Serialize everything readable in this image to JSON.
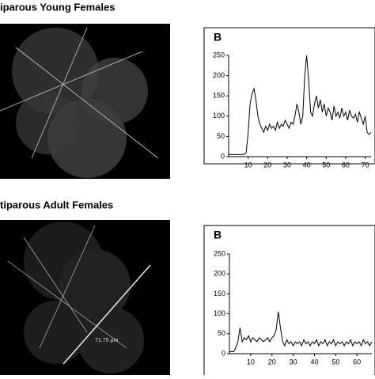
{
  "chart_data": [
    {
      "type": "line",
      "title": "iparous Young Females",
      "panel_label": "B",
      "color": "#000000",
      "x": [
        0,
        1,
        2,
        3,
        4,
        5,
        6,
        7,
        8,
        9,
        10,
        11,
        12,
        13,
        14,
        15,
        16,
        17,
        18,
        19,
        20,
        21,
        22,
        23,
        24,
        25,
        26,
        27,
        28,
        29,
        30,
        31,
        32,
        33,
        34,
        35,
        36,
        37,
        38,
        39,
        40,
        41,
        42,
        43,
        44,
        45,
        46,
        47,
        48,
        49,
        50,
        51,
        52,
        53,
        54,
        55,
        56,
        57,
        58,
        59,
        60,
        61,
        62,
        63,
        64,
        65,
        66,
        67,
        68,
        69,
        70,
        71,
        72,
        73
      ],
      "values": [
        5,
        5,
        5,
        5,
        5,
        5,
        5,
        5,
        6,
        10,
        60,
        130,
        155,
        168,
        140,
        100,
        80,
        70,
        60,
        75,
        65,
        80,
        70,
        75,
        65,
        85,
        70,
        80,
        75,
        90,
        80,
        70,
        85,
        80,
        100,
        130,
        110,
        80,
        100,
        200,
        250,
        190,
        110,
        100,
        130,
        150,
        120,
        140,
        110,
        130,
        100,
        120,
        110,
        90,
        125,
        100,
        110,
        95,
        120,
        100,
        110,
        90,
        115,
        100,
        95,
        105,
        85,
        110,
        95,
        80,
        100,
        60,
        55,
        60
      ],
      "xlim": [
        0,
        73
      ],
      "ylim": [
        0,
        250
      ],
      "xticks": [
        10,
        20,
        30,
        40,
        50,
        60,
        70
      ],
      "yticks": [
        0,
        50,
        100,
        150,
        200,
        250
      ]
    },
    {
      "type": "line",
      "title": "tiparous Adult Females",
      "panel_label": "B",
      "color": "#000000",
      "image_annotation": "71.75 µm",
      "x": [
        0,
        1,
        2,
        3,
        4,
        5,
        6,
        7,
        8,
        9,
        10,
        11,
        12,
        13,
        14,
        15,
        16,
        17,
        18,
        19,
        20,
        21,
        22,
        23,
        24,
        25,
        26,
        27,
        28,
        29,
        30,
        31,
        32,
        33,
        34,
        35,
        36,
        37,
        38,
        39,
        40,
        41,
        42,
        43,
        44,
        45,
        46,
        47,
        48,
        49,
        50,
        51,
        52,
        53,
        54,
        55,
        56,
        57,
        58,
        59,
        60,
        61,
        62,
        63,
        64,
        65,
        66,
        67
      ],
      "values": [
        5,
        5,
        5,
        15,
        30,
        65,
        30,
        40,
        35,
        45,
        30,
        40,
        35,
        30,
        40,
        35,
        30,
        35,
        40,
        30,
        40,
        45,
        60,
        105,
        65,
        30,
        20,
        35,
        25,
        30,
        20,
        30,
        25,
        30,
        20,
        35,
        25,
        30,
        20,
        30,
        25,
        35,
        20,
        30,
        25,
        35,
        20,
        30,
        25,
        35,
        20,
        30,
        25,
        30,
        20,
        30,
        25,
        35,
        20,
        30,
        25,
        30,
        20,
        35,
        25,
        30,
        20,
        30
      ],
      "xlim": [
        0,
        67
      ],
      "ylim": [
        0,
        250
      ],
      "xticks": [
        10,
        20,
        30,
        40,
        50,
        60
      ],
      "yticks": [
        0,
        50,
        100,
        150,
        200,
        250
      ]
    }
  ]
}
